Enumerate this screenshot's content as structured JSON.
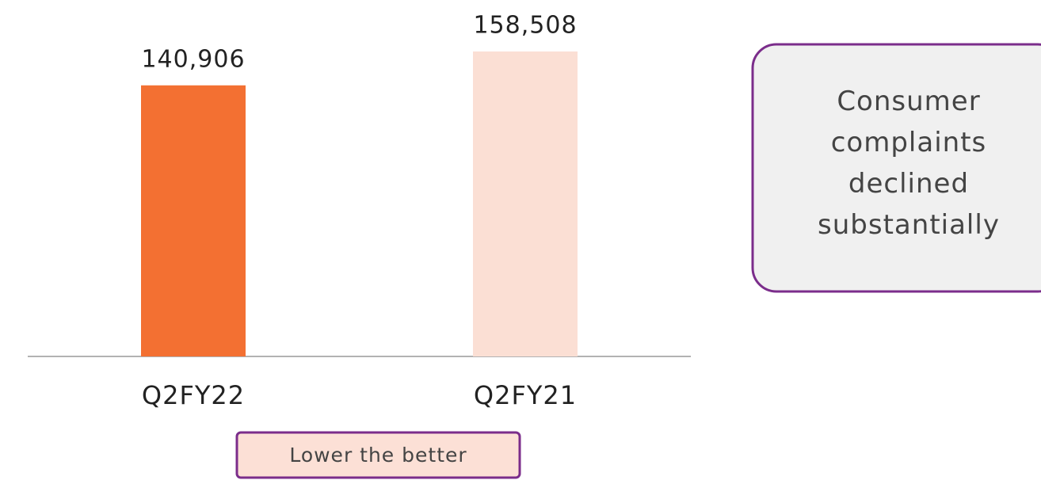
{
  "chart_data": {
    "type": "bar",
    "categories": [
      "Q2FY22",
      "Q2FY21"
    ],
    "values": [
      140906,
      158508
    ],
    "value_labels": [
      "140,906",
      "158,508"
    ],
    "colors": [
      "#f37032",
      "#fbdfd4"
    ],
    "annotations": [
      "Consumer complaints declined substantially",
      "Lower the better"
    ]
  }
}
